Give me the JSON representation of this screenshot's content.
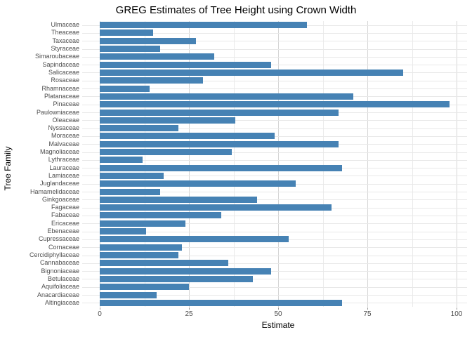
{
  "chart_data": {
    "type": "bar",
    "orientation": "horizontal",
    "title": "GREG Estimates of Tree Height using Crown Width",
    "xlabel": "Estimate",
    "ylabel": "Tree Family",
    "xlim": [
      0,
      100
    ],
    "x_ticks": [
      0,
      25,
      50,
      75,
      100
    ],
    "grid": "major-and-minor",
    "bar_color": "#4682B4",
    "categories": [
      "Ulmaceae",
      "Theaceae",
      "Taxaceae",
      "Styraceae",
      "Simaroubaceae",
      "Sapindaceae",
      "Salicaceae",
      "Rosaceae",
      "Rhamnaceae",
      "Platanaceae",
      "Pinaceae",
      "Paulowniaceae",
      "Oleaceae",
      "Nyssaceae",
      "Moraceae",
      "Malvaceae",
      "Magnoliaceae",
      "Lythraceae",
      "Lauraceae",
      "Lamiaceae",
      "Juglandaceae",
      "Hamamelidaceae",
      "Ginkgoaceae",
      "Fagaceae",
      "Fabaceae",
      "Ericaceae",
      "Ebenaceae",
      "Cupressaceae",
      "Cornaceae",
      "Cercidiphyllaceae",
      "Cannabaceae",
      "Bignoniaceae",
      "Betulaceae",
      "Aquifoliaceae",
      "Anacardiaceae",
      "Altingiaceae"
    ],
    "values": [
      58,
      15,
      27,
      17,
      32,
      48,
      85,
      29,
      14,
      71,
      98,
      67,
      38,
      22,
      49,
      67,
      37,
      12,
      68,
      18,
      55,
      17,
      44,
      65,
      34,
      24,
      13,
      53,
      23,
      22,
      36,
      48,
      43,
      25,
      16,
      68
    ]
  }
}
